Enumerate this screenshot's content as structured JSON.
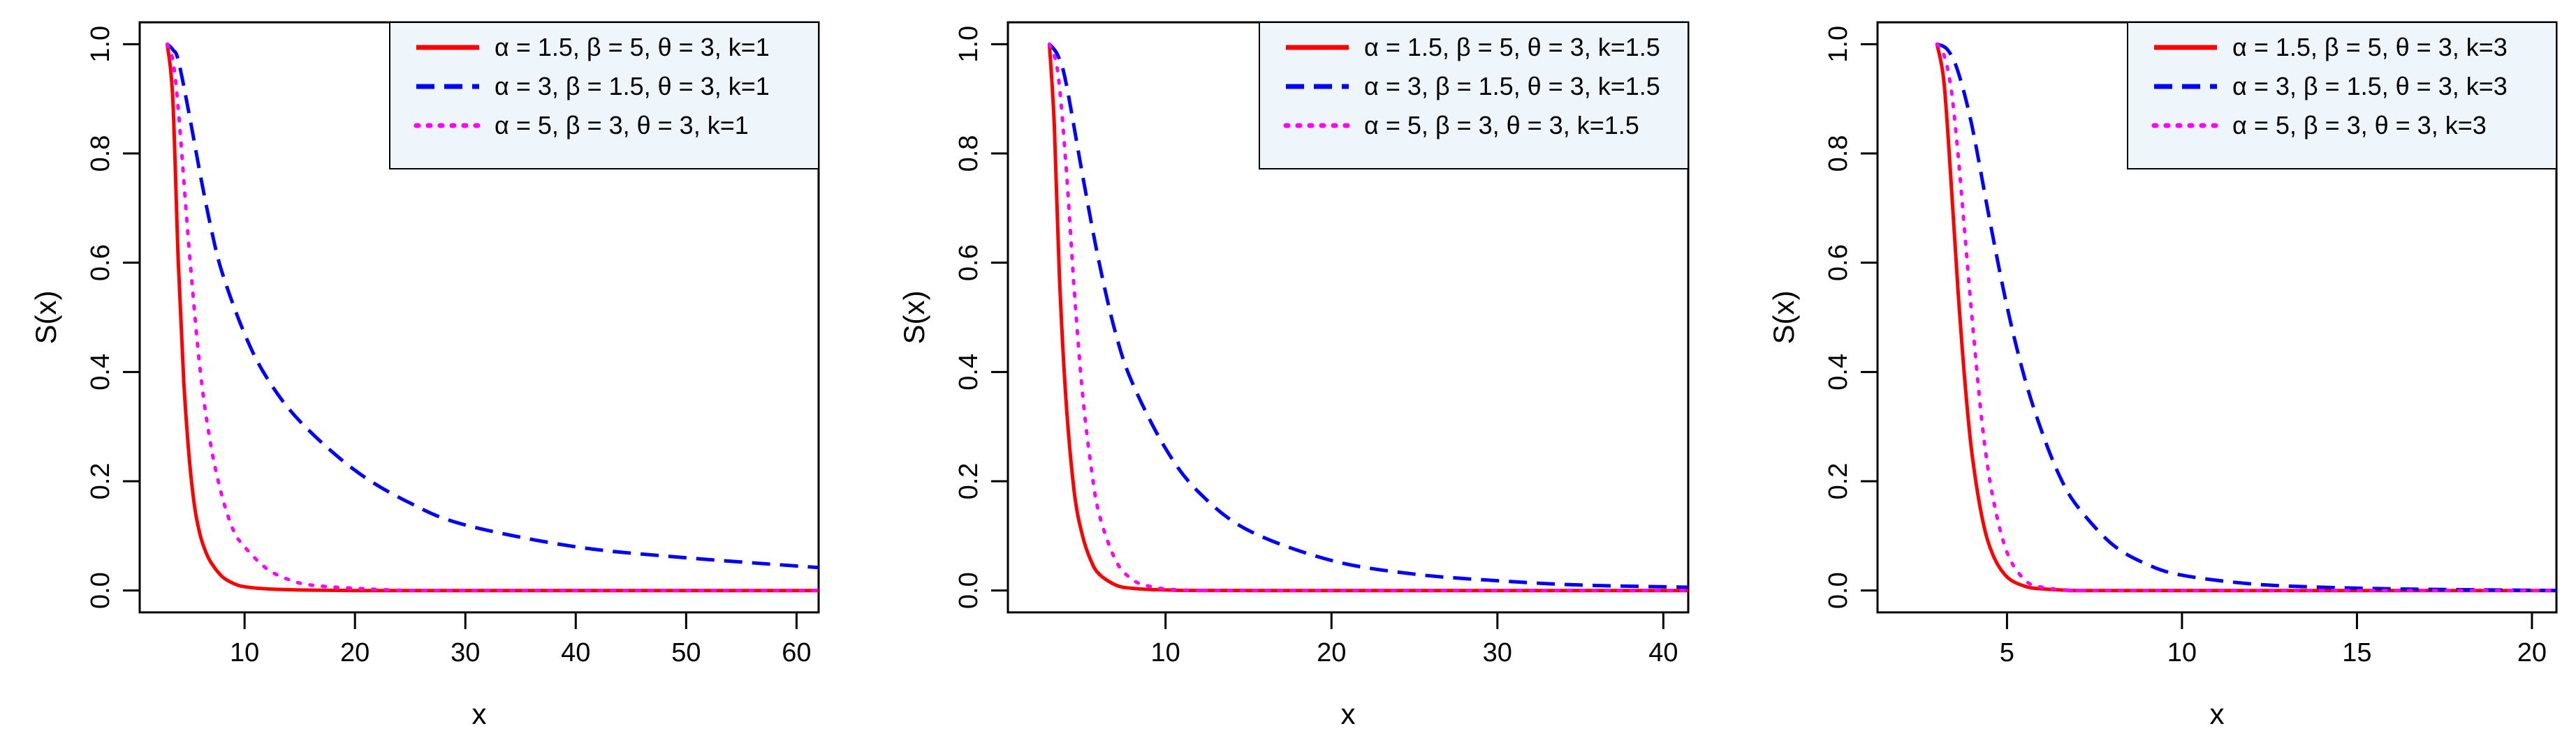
{
  "chart_data": [
    {
      "type": "line",
      "xlabel": "x",
      "ylabel": "S(x)",
      "xlim": [
        0.5,
        62
      ],
      "ylim": [
        -0.04,
        1.04
      ],
      "xticks": [
        10,
        20,
        30,
        40,
        50,
        60
      ],
      "yticks": [
        0.0,
        0.2,
        0.4,
        0.6,
        0.8,
        1.0
      ],
      "legend_position": "top-right",
      "series": [
        {
          "name": "α = 1.5, β = 5, θ = 3, k=1",
          "color": "#ff0000",
          "style": "solid",
          "x": [
            3,
            3.5,
            4,
            4.5,
            5,
            5.5,
            6,
            6.5,
            7,
            8,
            9,
            10,
            12,
            15,
            20,
            30,
            40,
            62
          ],
          "y": [
            1.0,
            0.9,
            0.6,
            0.38,
            0.24,
            0.15,
            0.1,
            0.07,
            0.05,
            0.025,
            0.013,
            0.007,
            0.003,
            0.001,
            0.0,
            0.0,
            0.0,
            0.0
          ]
        },
        {
          "name": "α = 3, β = 1.5, θ = 3, k=1",
          "color": "#0000ff",
          "style": "dashed",
          "x": [
            3,
            3.5,
            4,
            5,
            6,
            7,
            8,
            10,
            12,
            15,
            20,
            25,
            30,
            40,
            50,
            62
          ],
          "y": [
            1.0,
            0.99,
            0.97,
            0.87,
            0.76,
            0.66,
            0.58,
            0.47,
            0.39,
            0.31,
            0.22,
            0.16,
            0.12,
            0.08,
            0.06,
            0.042
          ]
        },
        {
          "name": "α = 5, β = 3, θ = 3, k=1",
          "color": "#ff00ff",
          "style": "dotted",
          "x": [
            3,
            3.5,
            4,
            5,
            6,
            7,
            8,
            9,
            10,
            12,
            14,
            16,
            20,
            25,
            30,
            62
          ],
          "y": [
            1.0,
            0.97,
            0.88,
            0.62,
            0.4,
            0.26,
            0.17,
            0.11,
            0.08,
            0.04,
            0.02,
            0.01,
            0.004,
            0.0,
            0.0,
            0.0
          ]
        }
      ]
    },
    {
      "type": "line",
      "xlabel": "x",
      "ylabel": "S(x)",
      "xlim": [
        0.5,
        41.5
      ],
      "ylim": [
        -0.04,
        1.04
      ],
      "xticks": [
        10,
        20,
        30,
        40
      ],
      "yticks": [
        0.0,
        0.2,
        0.4,
        0.6,
        0.8,
        1.0
      ],
      "legend_position": "top-right",
      "series": [
        {
          "name": "α = 1.5, β = 5, θ = 3, k=1.5",
          "color": "#ff0000",
          "style": "solid",
          "x": [
            3,
            3.3,
            3.6,
            4,
            4.5,
            5,
            5.5,
            6,
            7,
            8,
            10,
            15,
            41.5
          ],
          "y": [
            1.0,
            0.85,
            0.58,
            0.35,
            0.18,
            0.1,
            0.055,
            0.03,
            0.01,
            0.004,
            0.001,
            0.0,
            0.0
          ]
        },
        {
          "name": "α = 3, β = 1.5, θ = 3, k=1.5",
          "color": "#0000ff",
          "style": "dashed",
          "x": [
            3,
            3.5,
            4,
            5,
            6,
            7,
            8,
            10,
            12,
            15,
            20,
            25,
            30,
            35,
            41.5
          ],
          "y": [
            1.0,
            0.98,
            0.93,
            0.76,
            0.6,
            0.47,
            0.38,
            0.26,
            0.18,
            0.11,
            0.055,
            0.03,
            0.018,
            0.01,
            0.006
          ]
        },
        {
          "name": "α = 5, β = 3, θ = 3, k=1.5",
          "color": "#ff00ff",
          "style": "dotted",
          "x": [
            3,
            3.5,
            4,
            4.5,
            5,
            5.5,
            6,
            7,
            8,
            9,
            10,
            12,
            15,
            41.5
          ],
          "y": [
            1.0,
            0.95,
            0.78,
            0.55,
            0.36,
            0.23,
            0.14,
            0.055,
            0.02,
            0.008,
            0.003,
            0.0,
            0.0,
            0.0
          ]
        }
      ]
    },
    {
      "type": "line",
      "xlabel": "x",
      "ylabel": "S(x)",
      "xlim": [
        1.3,
        20.7
      ],
      "ylim": [
        -0.04,
        1.04
      ],
      "xticks": [
        5,
        10,
        15,
        20
      ],
      "yticks": [
        0.0,
        0.2,
        0.4,
        0.6,
        0.8,
        1.0
      ],
      "legend_position": "top-right",
      "series": [
        {
          "name": "α = 1.5, β = 5, θ = 3, k=3",
          "color": "#ff0000",
          "style": "solid",
          "x": [
            3,
            3.2,
            3.4,
            3.6,
            3.8,
            4,
            4.3,
            4.6,
            5,
            5.5,
            6,
            7,
            8,
            20.7
          ],
          "y": [
            1.0,
            0.93,
            0.75,
            0.55,
            0.38,
            0.25,
            0.13,
            0.065,
            0.025,
            0.008,
            0.003,
            0.0,
            0.0,
            0.0
          ]
        },
        {
          "name": "α = 3, β = 1.5, θ = 3, k=3",
          "color": "#0000ff",
          "style": "dashed",
          "x": [
            3,
            3.3,
            3.6,
            4,
            4.5,
            5,
            5.5,
            6,
            6.5,
            7,
            8,
            9,
            10,
            12,
            14,
            16,
            18,
            20.7
          ],
          "y": [
            1.0,
            0.99,
            0.95,
            0.85,
            0.68,
            0.52,
            0.39,
            0.29,
            0.21,
            0.155,
            0.085,
            0.048,
            0.028,
            0.012,
            0.006,
            0.003,
            0.0015,
            0.0
          ]
        },
        {
          "name": "α = 5, β = 3, θ = 3, k=3",
          "color": "#ff00ff",
          "style": "dotted",
          "x": [
            3,
            3.2,
            3.4,
            3.6,
            3.8,
            4,
            4.3,
            4.6,
            5,
            5.5,
            6,
            7,
            8,
            20.7
          ],
          "y": [
            1.0,
            0.98,
            0.92,
            0.8,
            0.65,
            0.5,
            0.3,
            0.17,
            0.07,
            0.02,
            0.006,
            0.0,
            0.0,
            0.0
          ]
        }
      ]
    }
  ]
}
